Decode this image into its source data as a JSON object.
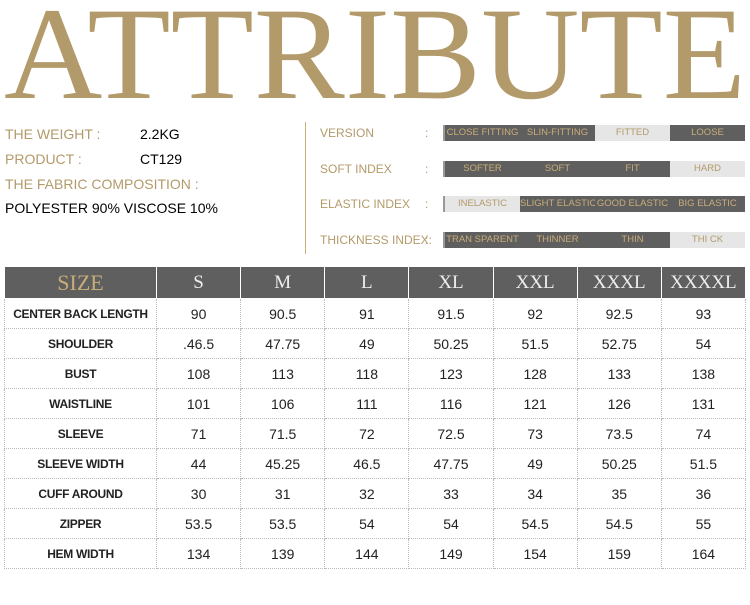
{
  "header": {
    "title": "ATTRIBUTE"
  },
  "info": [
    {
      "label": "THE WEIGHT :",
      "value": "2.2KG"
    },
    {
      "label": "PRODUCT   :",
      "value": "CT129"
    },
    {
      "label": "THE FABRIC COMPOSITION   :",
      "value": "POLYESTER 90%  VISCOSE 10%"
    }
  ],
  "indexes": [
    {
      "label": "VERSION",
      "options": [
        "CLOSE FITTING",
        "SLIN-FITTING",
        "FITTED",
        "LOOSE"
      ]
    },
    {
      "label": "SOFT INDEX",
      "options": [
        "SOFTER",
        "SOFT",
        "FIT",
        "HARD"
      ]
    },
    {
      "label": "ELASTIC INDEX",
      "options": [
        "INELASTIC",
        "SLIGHT ELASTIC",
        "GOOD ELASTIC",
        "BIG ELASTIC"
      ]
    },
    {
      "label": "THICKNESS INDEX:",
      "options": [
        "TRAN SPARENT",
        "THINNER",
        "THIN",
        "THI CK"
      ]
    }
  ],
  "colon": ":",
  "table": {
    "header": [
      "SIZE",
      "S",
      "M",
      "L",
      "XL",
      "XXL",
      "XXXL",
      "XXXXL"
    ],
    "rows": [
      [
        "CENTER BACK LENGTH",
        "90",
        "90.5",
        "91",
        "91.5",
        "92",
        "92.5",
        "93"
      ],
      [
        "SHOULDER",
        ".46.5",
        "47.75",
        "49",
        "50.25",
        "51.5",
        "52.75",
        "54"
      ],
      [
        "BUST",
        "108",
        "113",
        "118",
        "123",
        "128",
        "133",
        "138"
      ],
      [
        "WAISTLINE",
        "101",
        "106",
        "111",
        "116",
        "121",
        "126",
        "131"
      ],
      [
        "SLEEVE",
        "71",
        "71.5",
        "72",
        "72.5",
        "73",
        "73.5",
        "74"
      ],
      [
        "SLEEVE WIDTH",
        "44",
        "45.25",
        "46.5",
        "47.75",
        "49",
        "50.25",
        "51.5"
      ],
      [
        "CUFF AROUND",
        "30",
        "31",
        "32",
        "33",
        "34",
        "35",
        "36"
      ],
      [
        "ZIPPER",
        "53.5",
        "53.5",
        "54",
        "54",
        "54.5",
        "54.5",
        "55"
      ],
      [
        "HEM WIDTH",
        "134",
        "139",
        "144",
        "149",
        "154",
        "159",
        "164"
      ]
    ]
  }
}
